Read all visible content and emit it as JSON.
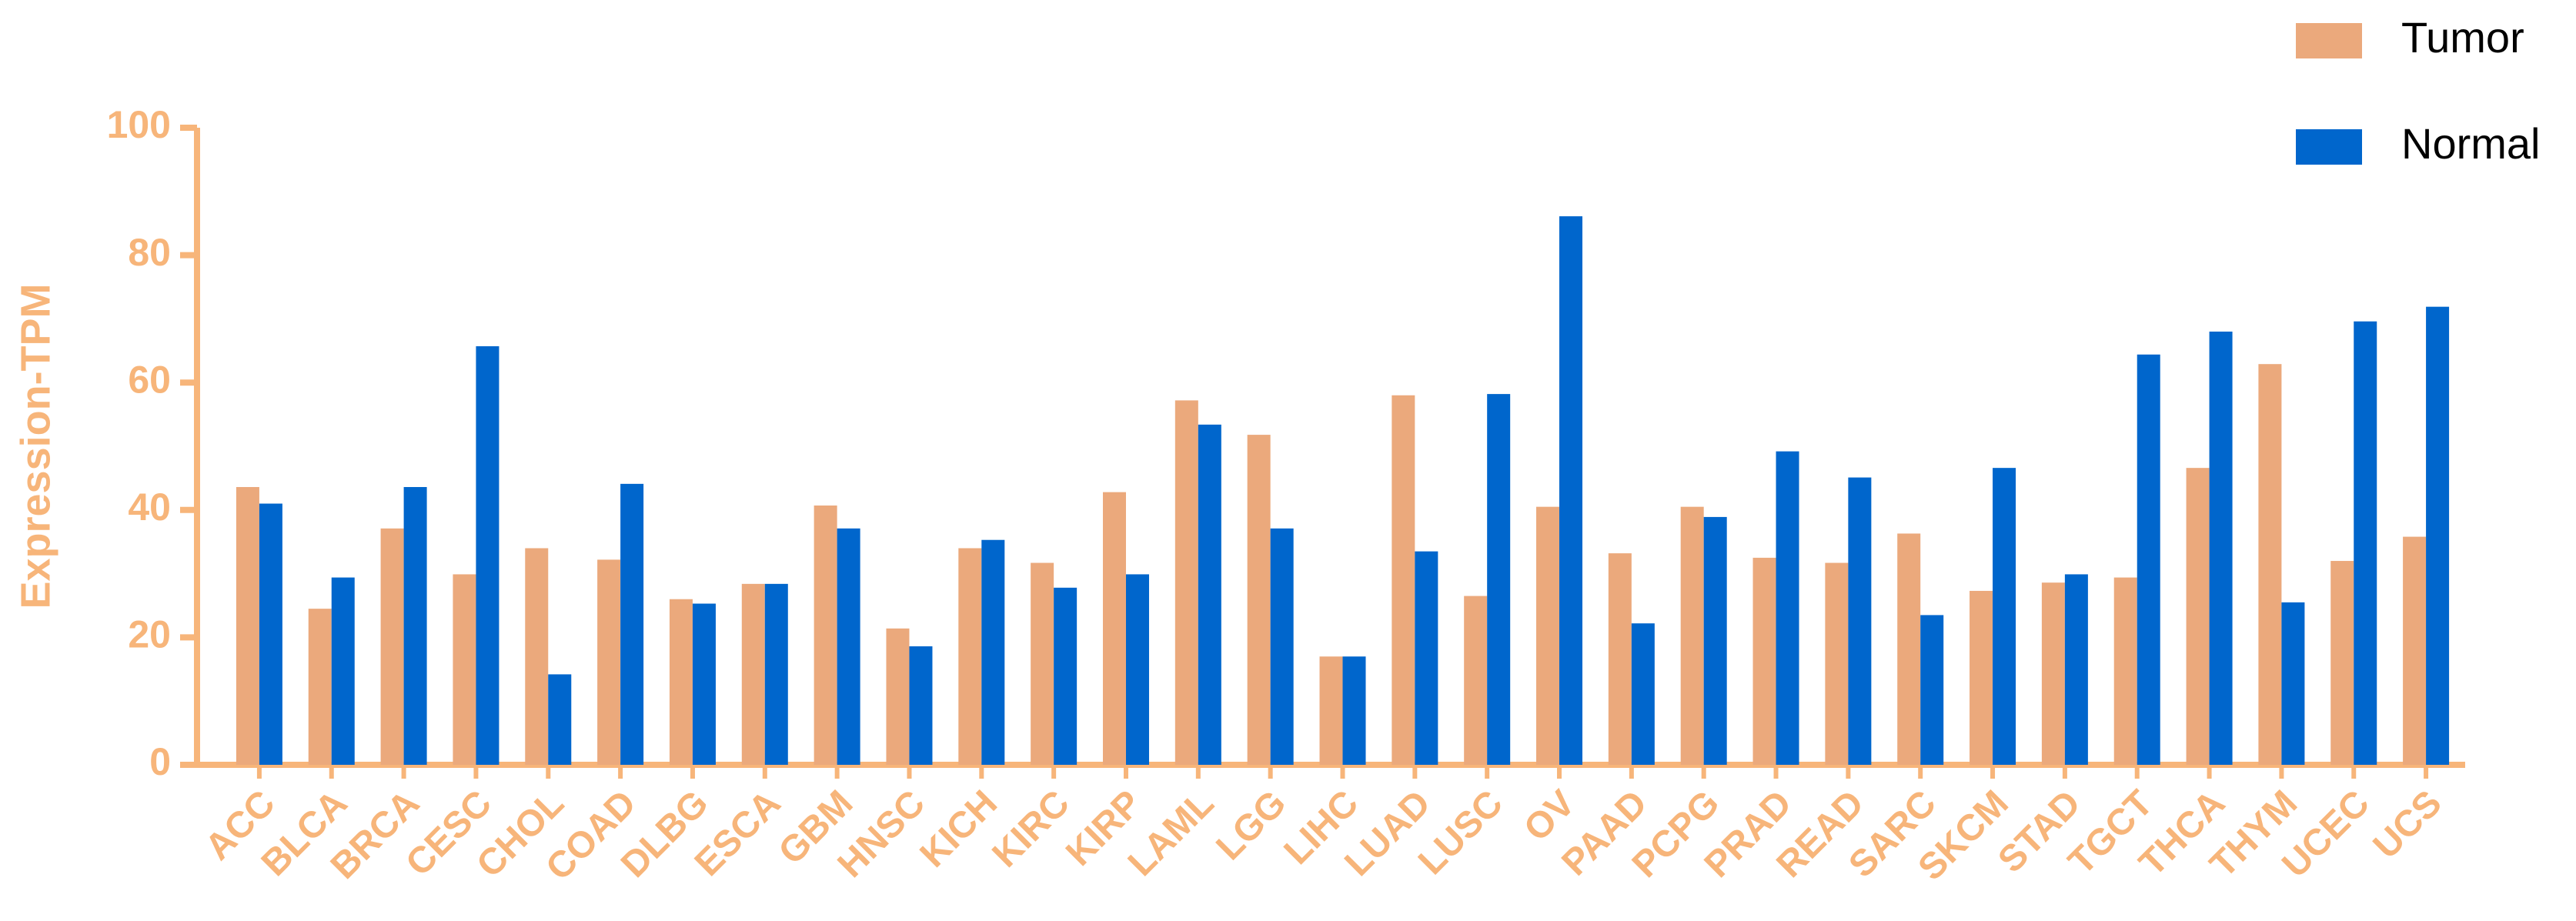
{
  "chart_data": {
    "type": "bar",
    "y_label": "Expression-TPM",
    "categories": [
      "ACC",
      "BLCA",
      "BRCA",
      "CESC",
      "CHOL",
      "COAD",
      "DLBG",
      "ESCA",
      "GBM",
      "HNSC",
      "KICH",
      "KIRC",
      "KIRP",
      "LAML",
      "LGG",
      "LIHC",
      "LUAD",
      "LUSC",
      "OV",
      "PAAD",
      "PCPG",
      "PRAD",
      "READ",
      "SARC",
      "SKCM",
      "STAD",
      "TGCT",
      "THCA",
      "THYM",
      "UCEC",
      "UCS"
    ],
    "series": [
      {
        "name": "Tumor",
        "color": "#eba97c",
        "values": [
          43.6,
          24.5,
          37.1,
          29.9,
          34.0,
          32.2,
          26.0,
          28.4,
          40.7,
          21.4,
          34.0,
          31.7,
          42.8,
          57.2,
          51.8,
          17.0,
          58.0,
          26.5,
          40.5,
          33.2,
          40.5,
          32.5,
          31.7,
          36.3,
          27.3,
          28.6,
          29.4,
          46.6,
          62.9,
          32.0,
          35.8
        ]
      },
      {
        "name": "Normal",
        "color": "#0066cc",
        "values": [
          41.0,
          29.4,
          43.6,
          65.7,
          14.2,
          44.1,
          25.3,
          28.4,
          37.1,
          18.6,
          35.3,
          27.8,
          29.9,
          53.4,
          37.1,
          17.0,
          33.5,
          58.2,
          86.1,
          22.2,
          38.9,
          49.2,
          45.1,
          23.5,
          46.6,
          29.9,
          64.4,
          68.0,
          25.5,
          69.6,
          71.9
        ]
      }
    ],
    "ylim": [
      0,
      100
    ],
    "yticks": [
      0,
      20,
      40,
      60,
      80,
      100
    ],
    "grid": false,
    "axis_color": "#f7b57a",
    "legend": "top-right"
  }
}
